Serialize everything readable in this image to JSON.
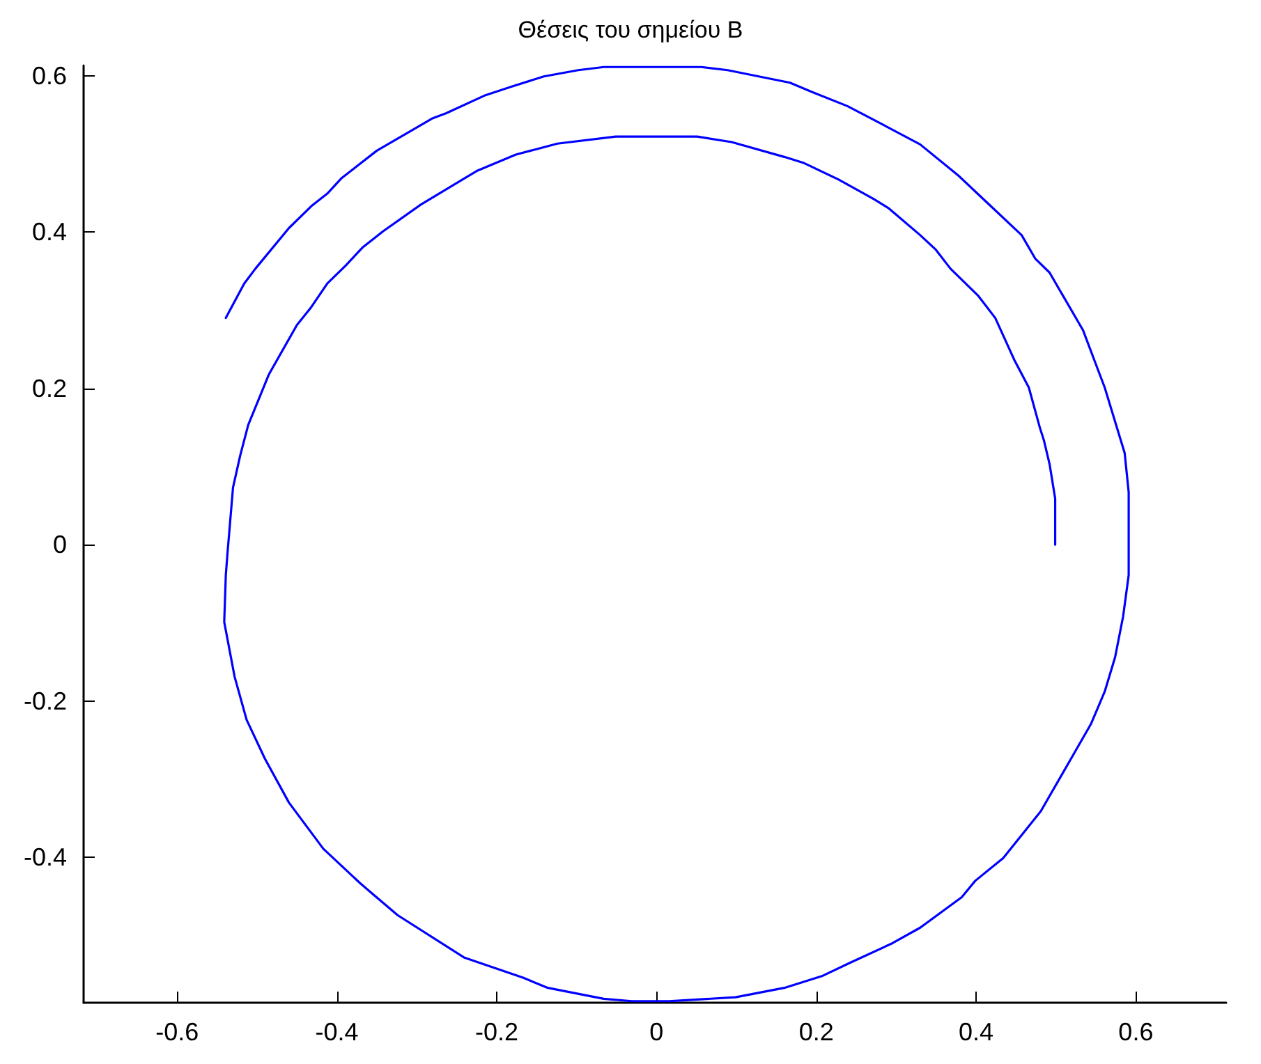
{
  "chart_data": {
    "type": "line",
    "title": "Θέσεις του σημείου B",
    "series": [
      {
        "color": "#0000ff",
        "x": [
          0.499,
          0.499,
          0.492,
          0.485,
          0.48,
          0.466,
          0.448,
          0.424,
          0.403,
          0.368,
          0.349,
          0.33,
          0.291,
          0.272,
          0.228,
          0.185,
          0.16,
          0.094,
          0.051,
          -0.051,
          -0.124,
          -0.176,
          -0.225,
          -0.295,
          -0.342,
          -0.368,
          -0.389,
          -0.412,
          -0.432,
          -0.45,
          -0.485,
          -0.511,
          -0.521,
          -0.53,
          -0.537,
          -0.539,
          -0.541,
          -0.528,
          -0.513,
          -0.49,
          -0.46,
          -0.417,
          -0.371,
          -0.354,
          -0.324,
          -0.241,
          -0.167,
          -0.136,
          -0.066,
          -0.031,
          0.016,
          0.033,
          0.099,
          0.16,
          0.207,
          0.242,
          0.295,
          0.33,
          0.382,
          0.399,
          0.434,
          0.481,
          0.521,
          0.544,
          0.561,
          0.574,
          0.584,
          0.591,
          0.591,
          0.586,
          0.561,
          0.548,
          0.534,
          0.509,
          0.492,
          0.474,
          0.457,
          0.405,
          0.378,
          0.33,
          0.282,
          0.239,
          0.195,
          0.167,
          0.089,
          0.056,
          -0.066,
          -0.098,
          -0.141,
          -0.181,
          -0.214,
          -0.263,
          -0.281,
          -0.35,
          -0.394,
          -0.412,
          -0.432,
          -0.46,
          -0.502,
          -0.516,
          -0.539
        ],
        "values": [
          0,
          0.059,
          0.103,
          0.133,
          0.149,
          0.201,
          0.236,
          0.29,
          0.318,
          0.353,
          0.378,
          0.396,
          0.43,
          0.442,
          0.467,
          0.488,
          0.496,
          0.515,
          0.522,
          0.522,
          0.513,
          0.499,
          0.478,
          0.435,
          0.401,
          0.38,
          0.357,
          0.334,
          0.304,
          0.281,
          0.218,
          0.153,
          0.114,
          0.073,
          -0.012,
          -0.039,
          -0.099,
          -0.169,
          -0.224,
          -0.274,
          -0.33,
          -0.389,
          -0.433,
          -0.448,
          -0.474,
          -0.528,
          -0.554,
          -0.567,
          -0.581,
          -0.584,
          -0.584,
          -0.583,
          -0.579,
          -0.567,
          -0.552,
          -0.535,
          -0.51,
          -0.49,
          -0.451,
          -0.43,
          -0.401,
          -0.341,
          -0.27,
          -0.229,
          -0.188,
          -0.144,
          -0.092,
          -0.039,
          0.067,
          0.117,
          0.201,
          0.236,
          0.274,
          0.318,
          0.348,
          0.366,
          0.396,
          0.446,
          0.472,
          0.512,
          0.538,
          0.561,
          0.579,
          0.591,
          0.607,
          0.611,
          0.611,
          0.607,
          0.599,
          0.586,
          0.575,
          0.552,
          0.545,
          0.504,
          0.469,
          0.449,
          0.433,
          0.405,
          0.353,
          0.334,
          0.29
        ]
      }
    ],
    "xlim": [
      -0.717,
      0.713
    ],
    "xticks": [
      -0.6,
      -0.4,
      -0.2,
      0,
      0.2,
      0.4,
      0.6
    ],
    "ylim": [
      -0.586,
      0.613
    ],
    "yticks": [
      -0.4,
      -0.2,
      0,
      0.2,
      0.4,
      0.6
    ],
    "grid": false,
    "marker": "none",
    "line_style": "solid"
  }
}
